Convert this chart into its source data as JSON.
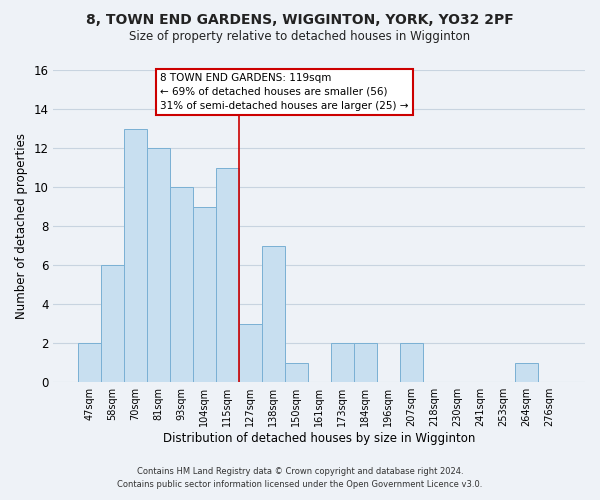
{
  "title": "8, TOWN END GARDENS, WIGGINTON, YORK, YO32 2PF",
  "subtitle": "Size of property relative to detached houses in Wigginton",
  "xlabel": "Distribution of detached houses by size in Wigginton",
  "ylabel": "Number of detached properties",
  "bar_labels": [
    "47sqm",
    "58sqm",
    "70sqm",
    "81sqm",
    "93sqm",
    "104sqm",
    "115sqm",
    "127sqm",
    "138sqm",
    "150sqm",
    "161sqm",
    "173sqm",
    "184sqm",
    "196sqm",
    "207sqm",
    "218sqm",
    "230sqm",
    "241sqm",
    "253sqm",
    "264sqm",
    "276sqm"
  ],
  "bar_heights": [
    2,
    6,
    13,
    12,
    10,
    9,
    11,
    3,
    7,
    1,
    0,
    2,
    2,
    0,
    2,
    0,
    0,
    0,
    0,
    1,
    0
  ],
  "bar_color": "#c8dff0",
  "bar_edge_color": "#7ab0d4",
  "property_line_index": 6,
  "property_line_color": "#cc0000",
  "ylim": [
    0,
    16
  ],
  "yticks": [
    0,
    2,
    4,
    6,
    8,
    10,
    12,
    14,
    16
  ],
  "annotation_title": "8 TOWN END GARDENS: 119sqm",
  "annotation_line1": "← 69% of detached houses are smaller (56)",
  "annotation_line2": "31% of semi-detached houses are larger (25) →",
  "annotation_box_edge": "#cc0000",
  "footer_line1": "Contains HM Land Registry data © Crown copyright and database right 2024.",
  "footer_line2": "Contains public sector information licensed under the Open Government Licence v3.0.",
  "background_color": "#eef2f7",
  "plot_background_color": "#eef2f7",
  "grid_color": "#c8d4e0"
}
